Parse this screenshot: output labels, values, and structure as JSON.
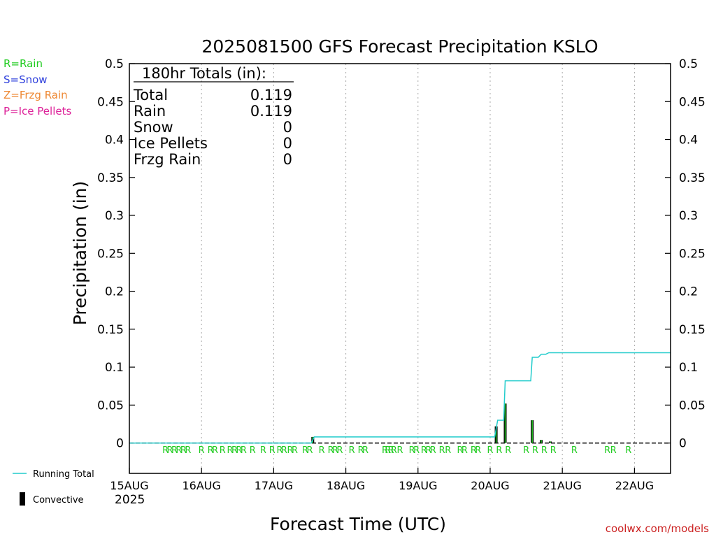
{
  "chart_data": {
    "type": "bar",
    "title": "2025081500 GFS Forecast Precipitation KSLO",
    "xlabel": "Forecast Time (UTC)",
    "ylabel": "Precipitation (in)",
    "ylim": [
      -0.04,
      0.5
    ],
    "xlim_hours": [
      0,
      180
    ],
    "y_ticks": [
      "0",
      "0.05",
      "0.1",
      "0.15",
      "0.2",
      "0.25",
      "0.3",
      "0.35",
      "0.4",
      "0.45",
      "0.5"
    ],
    "y_tick_values": [
      0,
      0.05,
      0.1,
      0.15,
      0.2,
      0.25,
      0.3,
      0.35,
      0.4,
      0.45,
      0.5
    ],
    "x_ticks": [
      {
        "label": "15AUG",
        "hour": 0
      },
      {
        "label": "16AUG",
        "hour": 24
      },
      {
        "label": "17AUG",
        "hour": 48
      },
      {
        "label": "18AUG",
        "hour": 72
      },
      {
        "label": "19AUG",
        "hour": 96
      },
      {
        "label": "20AUG",
        "hour": 120
      },
      {
        "label": "21AUG",
        "hour": 144
      },
      {
        "label": "22AUG",
        "hour": 168
      }
    ],
    "year_label": "2025",
    "grid": "vertical dotted at each day",
    "totals_box": {
      "heading": "180hr Totals (in):",
      "rows": [
        {
          "label": "Total",
          "value": "0.119"
        },
        {
          "label": "Rain",
          "value": "0.119"
        },
        {
          "label": "Snow",
          "value": "0"
        },
        {
          "label": "Ice Pellets",
          "value": "0"
        },
        {
          "label": "Frzg Rain",
          "value": "0"
        }
      ]
    },
    "type_legend": [
      {
        "text": "R=Rain",
        "color": "#22cc22"
      },
      {
        "text": "S=Snow",
        "color": "#3344dd"
      },
      {
        "text": "Z=Frzg Rain",
        "color": "#ee8833"
      },
      {
        "text": "P=Ice Pellets",
        "color": "#dd2299"
      }
    ],
    "bottom_legend": [
      {
        "text": "Running Total",
        "symbol": "line",
        "color": "#22cccc"
      },
      {
        "text": "Convective",
        "symbol": "bar",
        "color": "#000000"
      }
    ],
    "series": [
      {
        "name": "Running Total",
        "color": "#22cccc",
        "points": [
          [
            0,
            0
          ],
          [
            60.5,
            0
          ],
          [
            61.5,
            0.008
          ],
          [
            121.5,
            0.008
          ],
          [
            122.5,
            0.03
          ],
          [
            124.5,
            0.03
          ],
          [
            125,
            0.082
          ],
          [
            133.5,
            0.082
          ],
          [
            134,
            0.113
          ],
          [
            136,
            0.113
          ],
          [
            137,
            0.117
          ],
          [
            138.5,
            0.117
          ],
          [
            139.5,
            0.119
          ],
          [
            180,
            0.119
          ]
        ]
      }
    ],
    "precip_bars": [
      {
        "hour": 61,
        "value": 0.008
      },
      {
        "hour": 122,
        "value": 0.022
      },
      {
        "hour": 125,
        "value": 0.052
      },
      {
        "hour": 134,
        "value": 0.03
      },
      {
        "hour": 137,
        "value": 0.004
      },
      {
        "hour": 140,
        "value": 0.002
      }
    ],
    "type_marker_text": "R",
    "type_markers_hours": [
      12,
      13.5,
      15,
      16.5,
      18,
      19.5,
      24,
      27,
      28.5,
      31,
      33.5,
      35,
      36.5,
      38,
      41,
      44.5,
      47.5,
      50,
      51.5,
      53.5,
      55,
      58.5,
      60,
      64,
      67,
      68.5,
      70,
      74,
      77,
      78.5,
      85,
      86,
      87,
      88,
      90,
      94,
      95.5,
      98,
      99.5,
      101,
      104,
      106,
      110,
      111.5,
      114.5,
      116,
      120,
      123,
      126,
      132,
      135,
      138,
      141,
      148,
      159,
      161,
      166
    ],
    "credit": "coolwx.com/models"
  }
}
